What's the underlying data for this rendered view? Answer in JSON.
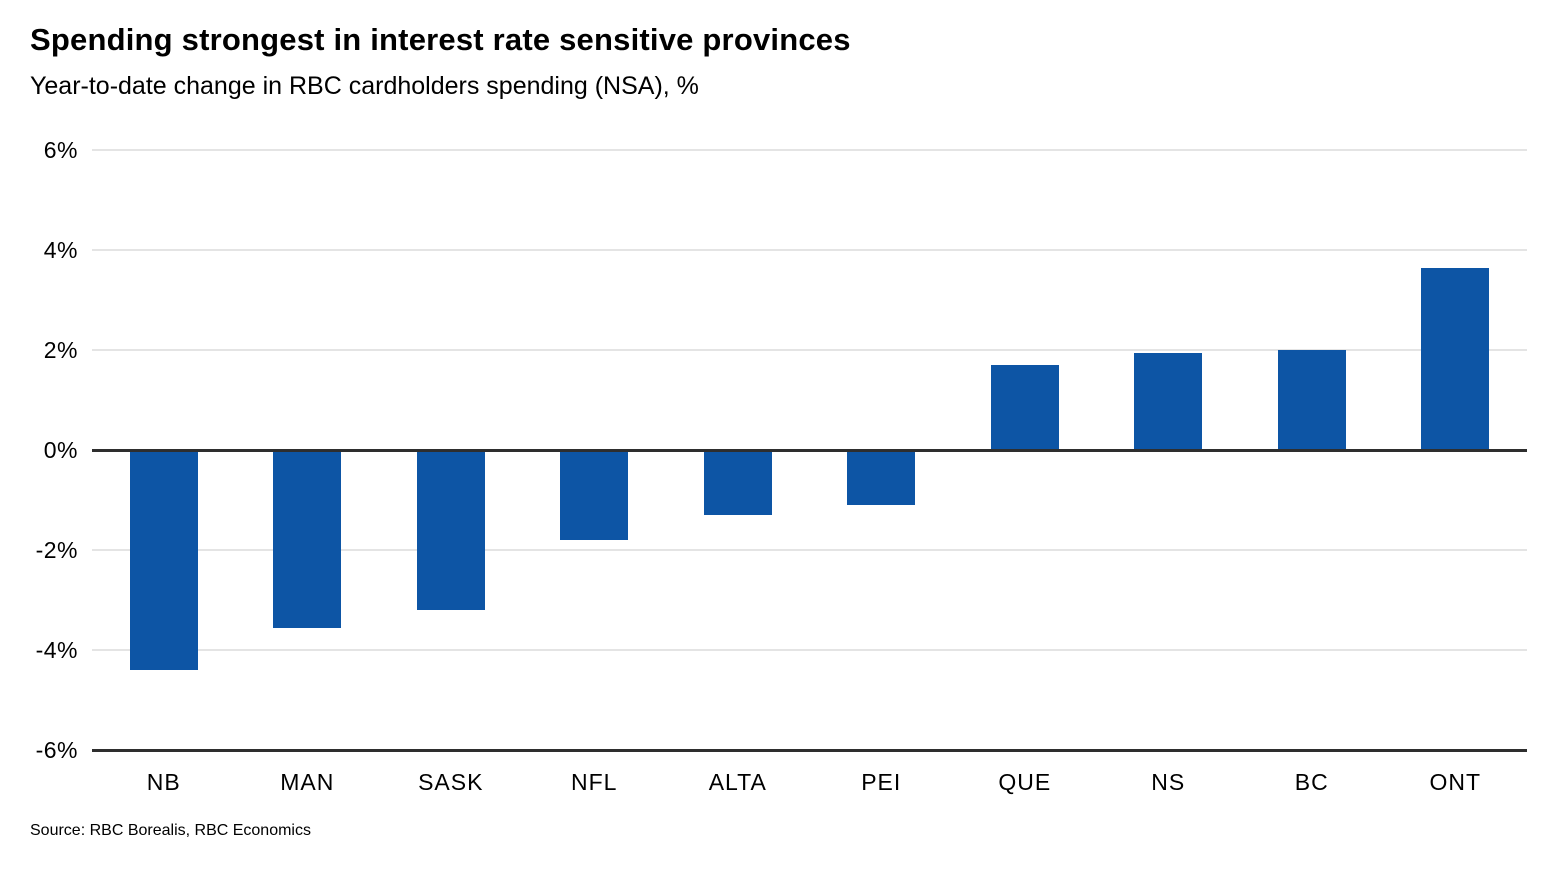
{
  "header": {
    "title": "Spending strongest in interest rate sensitive provinces",
    "subtitle": "Year-to-date change in RBC cardholders spending (NSA), %"
  },
  "chart_data": {
    "type": "bar",
    "title": "Spending strongest in interest rate sensitive provinces",
    "subtitle": "Year-to-date change in RBC cardholders spending (NSA), %",
    "categories": [
      "NB",
      "MAN",
      "SASK",
      "NFL",
      "ALTA",
      "PEI",
      "QUE",
      "NS",
      "BC",
      "ONT"
    ],
    "values": [
      -4.4,
      -3.55,
      -3.2,
      -1.8,
      -1.3,
      -1.1,
      1.7,
      1.95,
      2.0,
      3.65
    ],
    "xlabel": "",
    "ylabel": "Year-to-date change in RBC cardholders spending (NSA), %",
    "ylim": [
      -6,
      6
    ],
    "yticks": [
      6,
      4,
      2,
      0,
      -2,
      -4,
      -6
    ],
    "ytick_suffix": "%",
    "grid": true,
    "legend": "none",
    "bar_color": "#0d55a5",
    "axis_line_color": "#2e2e2e",
    "gridline_color": "#e4e4e4"
  },
  "footer": {
    "source": "Source: RBC Borealis, RBC Economics"
  }
}
